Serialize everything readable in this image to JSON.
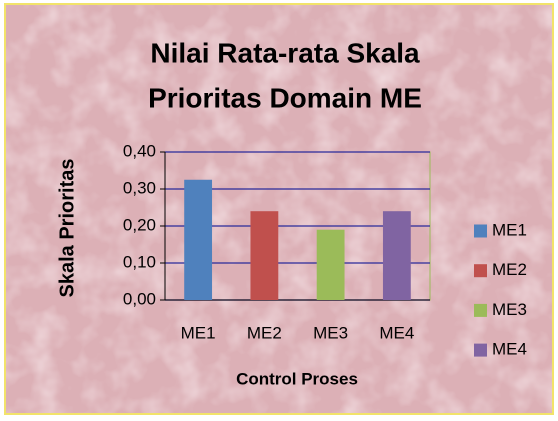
{
  "chart_data": {
    "type": "bar",
    "title": [
      "Nilai Rata-rata Skala",
      "Prioritas Domain ME"
    ],
    "y_label": "Skala Prioritas",
    "x_label": "Control Proses",
    "categories": [
      "ME1",
      "ME2",
      "ME3",
      "ME4"
    ],
    "values": [
      0.325,
      0.24,
      0.19,
      0.24
    ],
    "colors": [
      "#4f81bd",
      "#c0504d",
      "#9bbb59",
      "#8064a2"
    ],
    "ylim": [
      0,
      0.4
    ],
    "yticks": [
      {
        "value": 0,
        "label": "0,00"
      },
      {
        "value": 0.1,
        "label": "0,10"
      },
      {
        "value": 0.2,
        "label": "0,20"
      },
      {
        "value": 0.3,
        "label": "0,30"
      },
      {
        "value": 0.4,
        "label": "0,40"
      }
    ],
    "grid": true,
    "legend": "right"
  }
}
